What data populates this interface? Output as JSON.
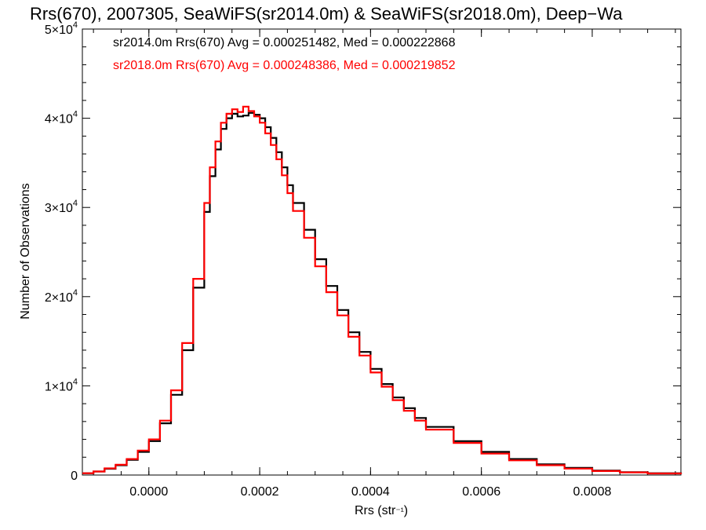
{
  "chart_data": {
    "type": "line",
    "title": "Rrs(670), 2007305, SeaWiFS(sr2014.0m) & SeaWiFS(sr2018.0m), Deep−Wa",
    "xlabel": "Rrs (str⁻¹)",
    "ylabel": "Number of Observations",
    "xlim": [
      -0.00012,
      0.00096
    ],
    "ylim": [
      0,
      50000
    ],
    "x_ticks": [
      {
        "value": 0.0,
        "label": "0.0000"
      },
      {
        "value": 0.0002,
        "label": "0.0002"
      },
      {
        "value": 0.0004,
        "label": "0.0004"
      },
      {
        "value": 0.0006,
        "label": "0.0006"
      },
      {
        "value": 0.0008,
        "label": "0.0008"
      }
    ],
    "y_ticks": [
      {
        "value": 0,
        "mant": "0",
        "exp": ""
      },
      {
        "value": 10000,
        "mant": "1×10",
        "exp": "4"
      },
      {
        "value": 20000,
        "mant": "2×10",
        "exp": "4"
      },
      {
        "value": 30000,
        "mant": "3×10",
        "exp": "4"
      },
      {
        "value": 40000,
        "mant": "4×10",
        "exp": "4"
      },
      {
        "value": 50000,
        "mant": "5×10",
        "exp": "4"
      }
    ],
    "legend": [
      {
        "text": "sr2014.0m Rrs(670) Avg = 0.000251482, Med = 0.000222868",
        "color": "#000000"
      },
      {
        "text": "sr2018.0m Rrs(670) Avg = 0.000248386, Med = 0.000219852",
        "color": "#ff0000"
      }
    ],
    "legend_position": "top-left",
    "series": [
      {
        "color": "#000000",
        "x": [
          -0.00012,
          -0.0001,
          -8e-05,
          -6e-05,
          -4e-05,
          -2e-05,
          0.0,
          2e-05,
          4e-05,
          6e-05,
          8e-05,
          0.0001,
          0.00011,
          0.00012,
          0.00013,
          0.00014,
          0.00015,
          0.00016,
          0.00017,
          0.00018,
          0.00019,
          0.0002,
          0.00021,
          0.00022,
          0.00023,
          0.00024,
          0.00025,
          0.00026,
          0.00028,
          0.0003,
          0.00032,
          0.00034,
          0.00036,
          0.00038,
          0.0004,
          0.00042,
          0.00044,
          0.00046,
          0.00048,
          0.0005,
          0.00055,
          0.0006,
          0.00065,
          0.0007,
          0.00075,
          0.0008,
          0.00085,
          0.0009,
          0.00096
        ],
        "y": [
          200,
          400,
          700,
          1100,
          1700,
          2600,
          3800,
          5800,
          9000,
          14000,
          21000,
          29500,
          33500,
          36500,
          38800,
          40000,
          40500,
          40200,
          40300,
          40600,
          40400,
          40000,
          39000,
          37800,
          36200,
          34500,
          32500,
          30500,
          27500,
          24200,
          21200,
          18500,
          16000,
          13800,
          11900,
          10200,
          8700,
          7500,
          6400,
          5400,
          3800,
          2600,
          1800,
          1200,
          800,
          500,
          330,
          200,
          100
        ]
      },
      {
        "color": "#ff0000",
        "x": [
          -0.00012,
          -0.0001,
          -8e-05,
          -6e-05,
          -4e-05,
          -2e-05,
          0.0,
          2e-05,
          4e-05,
          6e-05,
          8e-05,
          0.0001,
          0.00011,
          0.00012,
          0.00013,
          0.00014,
          0.00015,
          0.00016,
          0.00017,
          0.00018,
          0.00019,
          0.0002,
          0.00021,
          0.00022,
          0.00023,
          0.00024,
          0.00025,
          0.00026,
          0.00028,
          0.0003,
          0.00032,
          0.00034,
          0.00036,
          0.00038,
          0.0004,
          0.00042,
          0.00044,
          0.00046,
          0.00048,
          0.0005,
          0.00055,
          0.0006,
          0.00065,
          0.0007,
          0.00075,
          0.0008,
          0.00085,
          0.0009,
          0.00096
        ],
        "y": [
          200,
          400,
          750,
          1150,
          1800,
          2750,
          4000,
          6100,
          9500,
          14800,
          22000,
          30500,
          34500,
          37400,
          39500,
          40500,
          41000,
          40700,
          41300,
          40800,
          40200,
          39500,
          38300,
          37000,
          35400,
          33600,
          31600,
          29600,
          26600,
          23400,
          20500,
          17900,
          15500,
          13400,
          11500,
          9900,
          8400,
          7200,
          6100,
          5100,
          3600,
          2400,
          1650,
          1100,
          720,
          450,
          300,
          180,
          90
        ]
      }
    ]
  }
}
